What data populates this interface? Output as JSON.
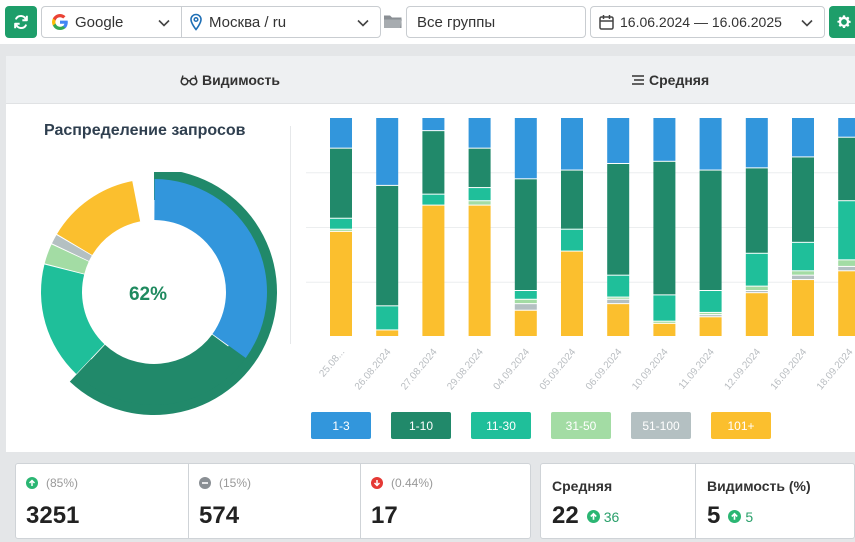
{
  "toolbar": {
    "search_engine": "Google",
    "region": "Москва / ru",
    "group": "Все группы",
    "date_range": "16.06.2024 — 16.06.2025"
  },
  "tabs": [
    {
      "label": "Видимость"
    },
    {
      "label": "Средняя"
    }
  ],
  "distribution": {
    "title": "Распределение запросов",
    "center_value": "62%",
    "segments": [
      {
        "range": "1-3",
        "share": 0.35,
        "color": "#3296dc"
      },
      {
        "range": "1-10",
        "share": 0.27,
        "color": "#21896a"
      },
      {
        "range": "11-30",
        "share": 0.17,
        "color": "#1fbf9a"
      },
      {
        "range": "31-50",
        "share": 0.03,
        "color": "#a3dca4"
      },
      {
        "range": "51-100",
        "share": 0.015,
        "color": "#b4c0c2"
      },
      {
        "range": "101+",
        "share": 0.135,
        "color": "#fbbf2e"
      }
    ],
    "outer_ring_share": 0.62
  },
  "chart_data": {
    "type": "bar",
    "stacked": true,
    "categories": [
      "25.08...",
      "26.08.2024",
      "27.08.2024",
      "29.08.2024",
      "04.09.2024",
      "05.09.2024",
      "06.09.2024",
      "10.09.2024",
      "11.09.2024",
      "12.09.2024",
      "16.09.2024",
      "18.09.2024"
    ],
    "series": [
      {
        "name": "101+",
        "color": "#fbbf2e",
        "values": [
          48,
          3,
          60,
          60,
          12,
          39,
          15,
          6,
          9,
          20,
          26,
          30
        ]
      },
      {
        "name": "51-100",
        "color": "#b4c0c2",
        "values": [
          0,
          0,
          0,
          0,
          3,
          0,
          2,
          0,
          1,
          1,
          2,
          2
        ]
      },
      {
        "name": "31-50",
        "color": "#a3dca4",
        "values": [
          1,
          0,
          0,
          2,
          2,
          0,
          1,
          1,
          1,
          2,
          2,
          3
        ]
      },
      {
        "name": "11-30",
        "color": "#1fbf9a",
        "values": [
          5,
          11,
          5,
          6,
          4,
          10,
          10,
          12,
          10,
          15,
          13,
          27
        ]
      },
      {
        "name": "1-10",
        "color": "#21896a",
        "values": [
          32,
          55,
          29,
          18,
          51,
          27,
          51,
          61,
          55,
          39,
          39,
          29
        ]
      },
      {
        "name": "1-3",
        "color": "#3296dc",
        "values": [
          14,
          31,
          6,
          14,
          28,
          24,
          21,
          20,
          24,
          23,
          18,
          9
        ]
      }
    ],
    "ylim": [
      0,
      100
    ]
  },
  "legend": [
    {
      "label": "1-3",
      "color": "#3296dc"
    },
    {
      "label": "1-10",
      "color": "#21896a"
    },
    {
      "label": "11-30",
      "color": "#1fbf9a"
    },
    {
      "label": "31-50",
      "color": "#a3dca4"
    },
    {
      "label": "51-100",
      "color": "#b4c0c2"
    },
    {
      "label": "101+",
      "color": "#fbbf2e"
    }
  ],
  "stats": [
    {
      "pct": "(85%)",
      "value": "3251",
      "trend": "up",
      "color": "#2bb673"
    },
    {
      "pct": "(15%)",
      "value": "574",
      "trend": "neutral",
      "color": "#8a8f94"
    },
    {
      "pct": "(0.44%)",
      "value": "17",
      "trend": "down",
      "color": "#e53935"
    }
  ],
  "summary": {
    "average": {
      "label": "Средняя",
      "value": "22",
      "delta": "36"
    },
    "visibility": {
      "label": "Видимость (%)",
      "value": "5",
      "delta": "5"
    }
  }
}
